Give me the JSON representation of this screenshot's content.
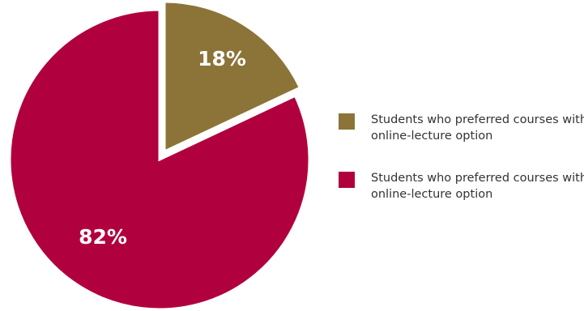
{
  "chart_data": {
    "type": "pie",
    "slices": [
      {
        "name": "Students who preferred courses with no online-lecture option",
        "value": 18,
        "label": "18%",
        "color": "#8c7438"
      },
      {
        "name": "Students who preferred courses with online-lecture option",
        "value": 82,
        "label": "82%",
        "color": "#b1003e"
      }
    ],
    "start_angle": "12 o'clock, clockwise",
    "legend_position": "right"
  }
}
